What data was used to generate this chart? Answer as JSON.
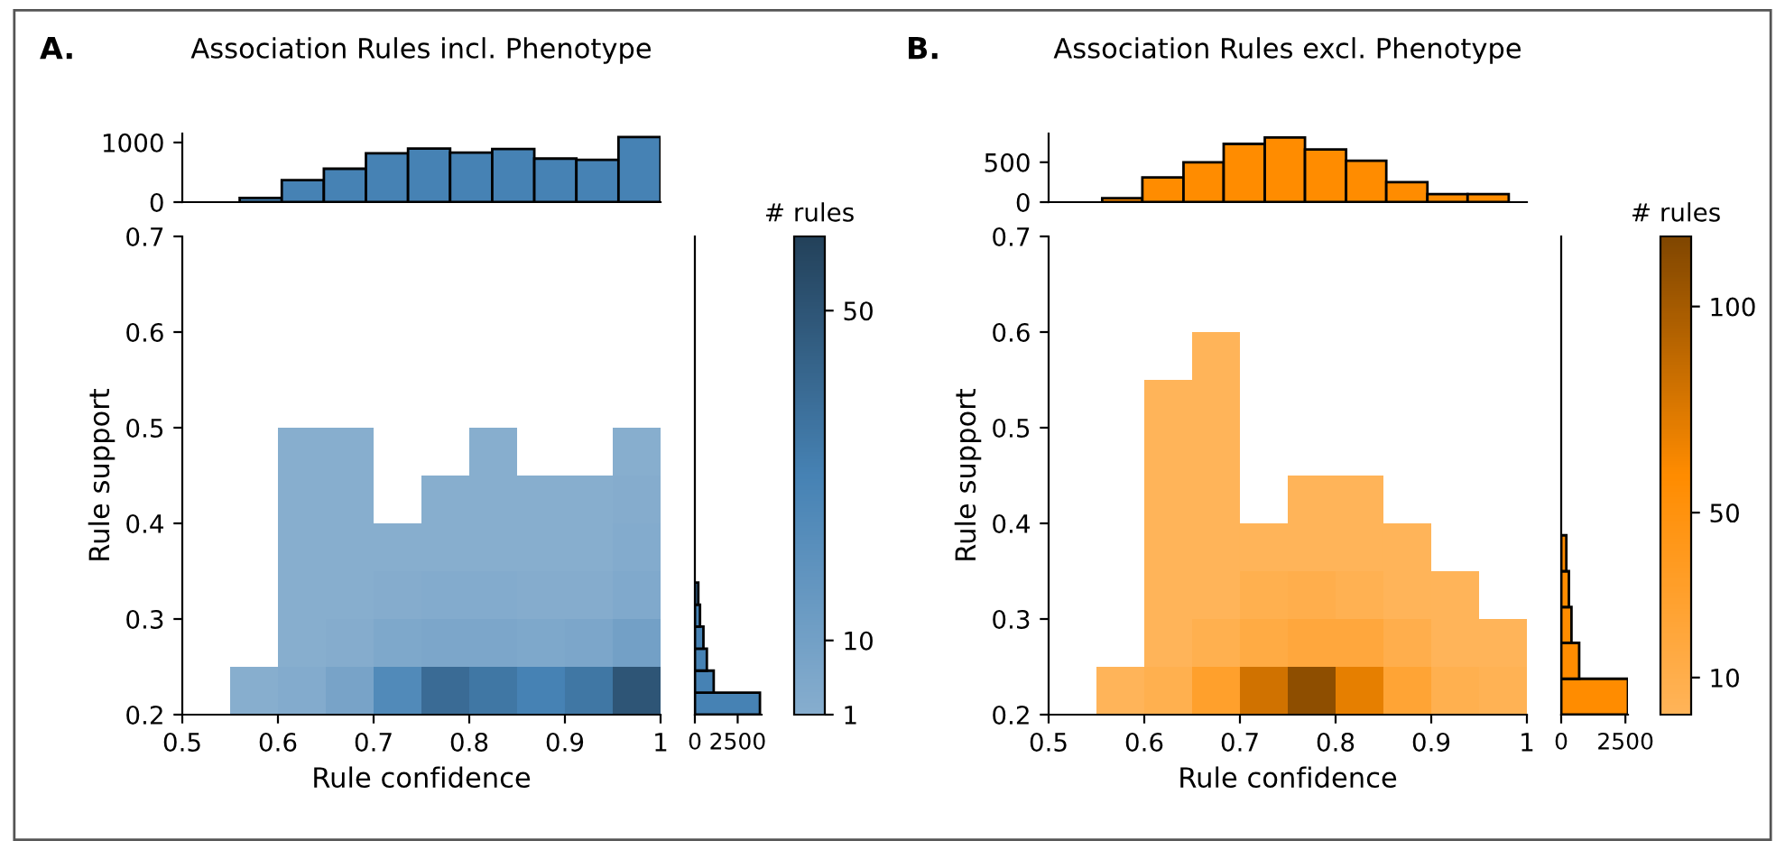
{
  "chart_data": [
    {
      "type": "histogram",
      "title": "Association Rules incl. Phenotype",
      "bins": [
        0.56,
        0.604,
        0.648,
        0.692,
        0.736,
        0.78,
        0.824,
        0.868,
        0.912,
        0.956,
        1.0
      ],
      "values": [
        70,
        370,
        560,
        820,
        900,
        830,
        890,
        730,
        710,
        1090
      ],
      "color": "#4682b4",
      "xlim": [
        0.5,
        1
      ],
      "ylim": [
        0,
        1150
      ],
      "yticks": [
        0,
        1000
      ],
      "tick_labels": "y"
    },
    {
      "type": "scatter",
      "marker": "square",
      "annotations": [
        "A."
      ],
      "xlabel": "Rule confidence",
      "ylabel": "Rule support",
      "clabel": "# rules",
      "xlim": [
        0.5,
        1
      ],
      "ylim": [
        0.2,
        0.7
      ],
      "xticks": [
        0.5,
        0.6,
        0.7,
        0.8,
        0.9,
        1
      ],
      "yticks": [
        0.2,
        0.3,
        0.4,
        0.5,
        0.6,
        0.7
      ],
      "clim": [
        1,
        59
      ],
      "cticks": [
        1,
        10,
        50
      ],
      "x": [
        0.625,
        0.675,
        0.825,
        0.975,
        0.625,
        0.675,
        0.775,
        0.825,
        0.875,
        0.925,
        0.975,
        0.625,
        0.675,
        0.725,
        0.775,
        0.825,
        0.875,
        0.925,
        0.975,
        0.625,
        0.675,
        0.725,
        0.775,
        0.825,
        0.875,
        0.925,
        0.975,
        0.625,
        0.675,
        0.725,
        0.775,
        0.825,
        0.875,
        0.925,
        0.975,
        0.575,
        0.625,
        0.675,
        0.725,
        0.775,
        0.825,
        0.875,
        0.925,
        0.975
      ],
      "values": [
        0.475,
        0.475,
        0.475,
        0.475,
        0.425,
        0.425,
        0.425,
        0.425,
        0.425,
        0.425,
        0.425,
        0.375,
        0.375,
        0.375,
        0.375,
        0.375,
        0.375,
        0.375,
        0.375,
        0.325,
        0.325,
        0.325,
        0.325,
        0.325,
        0.325,
        0.325,
        0.325,
        0.275,
        0.275,
        0.275,
        0.275,
        0.275,
        0.275,
        0.275,
        0.275,
        0.225,
        0.225,
        0.225,
        0.225,
        0.225,
        0.225,
        0.225,
        0.225,
        0.225
      ],
      "cvalues": [
        1,
        1,
        1,
        1,
        1,
        1,
        1,
        1,
        1,
        1,
        2,
        1,
        1,
        1,
        1,
        1,
        1,
        1,
        3,
        1,
        1,
        2,
        3,
        3,
        2,
        2,
        4,
        1,
        2,
        5,
        6,
        6,
        5,
        6,
        10,
        1,
        3,
        8,
        25,
        40,
        35,
        30,
        35,
        50
      ]
    },
    {
      "type": "histogram",
      "orientation": "horizontal",
      "bins": [
        0.2,
        0.223,
        0.246,
        0.269,
        0.292,
        0.315,
        0.338,
        0.361,
        0.384,
        0.407,
        0.43,
        0.453,
        0.476,
        0.499,
        0.522,
        0.545,
        0.568
      ],
      "values": [
        3800,
        1100,
        700,
        500,
        300,
        200,
        null,
        0,
        0,
        0,
        0,
        0,
        0,
        0,
        0,
        0
      ],
      "color": "#4682b4",
      "xlim": [
        0,
        3900
      ],
      "xticks": [
        0,
        2500
      ],
      "ylim": [
        0.2,
        0.7
      ],
      "tick_labels": "x"
    },
    {
      "type": "histogram",
      "title": "Association Rules excl. Phenotype",
      "bins": [
        0.556,
        0.598,
        0.641,
        0.683,
        0.726,
        0.768,
        0.811,
        0.853,
        0.896,
        0.938,
        0.981
      ],
      "values": [
        50,
        310,
        500,
        730,
        810,
        660,
        520,
        250,
        100,
        100
      ],
      "color": "#ff8c00",
      "xlim": [
        0.5,
        1
      ],
      "ylim": [
        0,
        860
      ],
      "yticks": [
        0,
        500
      ],
      "tick_labels": "y"
    },
    {
      "type": "scatter",
      "marker": "square",
      "annotations": [
        "B."
      ],
      "xlabel": "Rule confidence",
      "ylabel": "Rule support",
      "clabel": "# rules",
      "xlim": [
        0.5,
        1
      ],
      "ylim": [
        0.2,
        0.7
      ],
      "xticks": [
        0.5,
        0.6,
        0.7,
        0.8,
        0.9,
        1
      ],
      "yticks": [
        0.2,
        0.3,
        0.4,
        0.5,
        0.6,
        0.7
      ],
      "clim": [
        1,
        117
      ],
      "cticks": [
        10,
        50,
        100
      ],
      "x": [
        0.675,
        0.625,
        0.675,
        0.625,
        0.675,
        0.625,
        0.675,
        0.775,
        0.825,
        0.625,
        0.675,
        0.725,
        0.775,
        0.825,
        0.875,
        0.625,
        0.675,
        0.725,
        0.775,
        0.825,
        0.875,
        0.925,
        0.625,
        0.675,
        0.725,
        0.775,
        0.825,
        0.875,
        0.925,
        0.975,
        0.575,
        0.625,
        0.675,
        0.725,
        0.775,
        0.825,
        0.875,
        0.925,
        0.975
      ],
      "values": [
        0.575,
        0.525,
        0.525,
        0.475,
        0.475,
        0.425,
        0.425,
        0.425,
        0.425,
        0.375,
        0.375,
        0.375,
        0.375,
        0.375,
        0.375,
        0.325,
        0.325,
        0.325,
        0.325,
        0.325,
        0.325,
        0.325,
        0.275,
        0.275,
        0.275,
        0.275,
        0.275,
        0.275,
        0.275,
        0.275,
        0.225,
        0.225,
        0.225,
        0.225,
        0.225,
        0.225,
        0.225,
        0.225,
        0.225
      ],
      "cvalues": [
        1,
        1,
        1,
        1,
        1,
        1,
        1,
        1,
        1,
        1,
        1,
        1,
        1,
        1,
        1,
        1,
        1,
        8,
        10,
        6,
        1,
        1,
        1,
        8,
        15,
        20,
        20,
        10,
        1,
        1,
        1,
        8,
        30,
        80,
        110,
        70,
        25,
        8,
        5
      ]
    },
    {
      "type": "histogram",
      "orientation": "horizontal",
      "bins": [
        0.2,
        0.2375,
        0.275,
        0.3125,
        0.35,
        0.3875,
        0.425,
        0.4625,
        0.5,
        0.5375,
        0.575
      ],
      "values": [
        2600,
        700,
        400,
        300,
        200,
        null,
        0,
        0,
        0,
        0
      ],
      "color": "#ff8c00",
      "xlim": [
        0,
        2600
      ],
      "xticks": [
        0,
        2500
      ],
      "ylim": [
        0.2,
        0.7
      ],
      "tick_labels": "x"
    }
  ]
}
